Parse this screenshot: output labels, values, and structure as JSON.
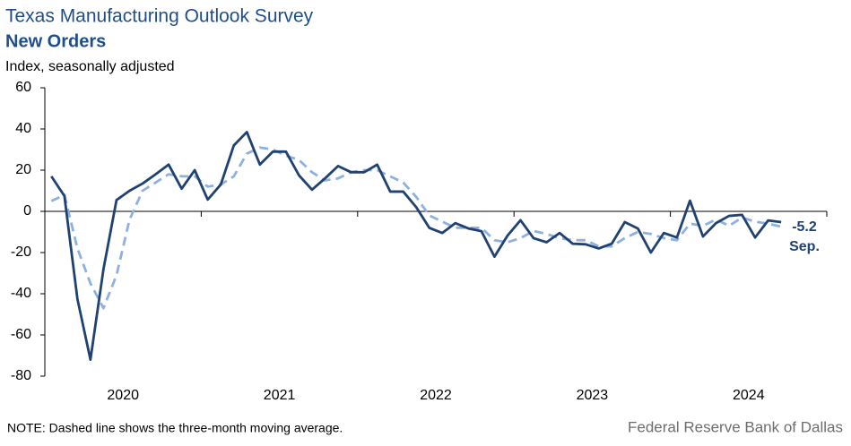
{
  "chart_data": {
    "type": "line",
    "title": "Texas Manufacturing Outlook Survey",
    "subtitle": "New Orders",
    "y_label": "Index, seasonally adjusted",
    "note": "NOTE: Dashed line shows the three-month  moving average.",
    "source": "Federal Reserve Bank of Dallas",
    "annotations": [
      "-5.2",
      "Sep."
    ],
    "categories": [
      null,
      null,
      null,
      null,
      null,
      null,
      null,
      null,
      null,
      null,
      null,
      null,
      null,
      null,
      null,
      null,
      null,
      null,
      null,
      null,
      null,
      null,
      null,
      null,
      null,
      null,
      null,
      null,
      null,
      null,
      null,
      null,
      null,
      null,
      null,
      null,
      null,
      null,
      null,
      null,
      null,
      null,
      null,
      null,
      null,
      null,
      null,
      null,
      null,
      null,
      null,
      null,
      null,
      null,
      null,
      null,
      null
    ],
    "year_labels": [
      "2020",
      "2021",
      "2022",
      "2023",
      "2024"
    ],
    "series": [
      {
        "name": "New Orders",
        "color": "#1f4273",
        "dashed": false,
        "values": [
          17,
          7.5,
          -42.5,
          -72,
          -28,
          5.5,
          10,
          13.5,
          18,
          22.7,
          11,
          20,
          5.7,
          13,
          32,
          38.5,
          22.7,
          29,
          29,
          17.5,
          10.5,
          16,
          22,
          19,
          19,
          22.7,
          9.6,
          9.6,
          2,
          -8,
          -10.5,
          -5.7,
          -8.3,
          -9.6,
          -22,
          -11.8,
          -4.3,
          -13,
          -15,
          -10.5,
          -15.7,
          -16,
          -18,
          -15.7,
          -5.2,
          -8.3,
          -20,
          -10.5,
          -12.7,
          5.2,
          -12.2,
          -5.7,
          -2.2,
          -1.7,
          -12.7,
          -4.4,
          -5.2
        ]
      },
      {
        "name": "Three-month moving average",
        "color": "#8fb1de",
        "dashed": true,
        "values": [
          5,
          8,
          -18,
          -35,
          -47,
          -31,
          -4,
          10,
          14,
          18,
          17,
          17,
          12,
          13,
          17,
          28,
          31,
          30,
          27,
          25,
          19,
          15,
          16,
          19,
          20,
          20,
          17,
          14,
          7,
          -2,
          -5,
          -8,
          -8,
          -8,
          -14,
          -15,
          -13,
          -9.5,
          -11,
          -13,
          -14,
          -14,
          -17,
          -17,
          -13,
          -10,
          -11,
          -13,
          -14,
          -6,
          -7,
          -4,
          -7,
          -3,
          -5,
          -6,
          -7.4
        ]
      }
    ],
    "ylim": [
      -80,
      60
    ],
    "yticks": [
      -80,
      -60,
      -40,
      -20,
      0,
      20,
      40,
      60
    ]
  }
}
